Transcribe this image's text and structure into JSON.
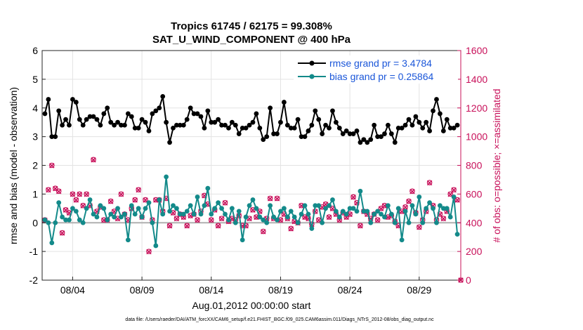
{
  "chart_data": {
    "type": "line",
    "title": "Tropics 61745 / 62175 = 99.308%",
    "subtitle": "SAT_U_WIND_COMPONENT @ 400 hPa",
    "xlabel": "Aug.01,2012 00:00:00 start",
    "ylabel_left": "rmse and bias (model - observation)",
    "ylabel_right": "# of obs: o=possible; ×=assimilated",
    "footnote": "data file: /Users/raeder/DAI/ATM_forcXX/CAM6_setup/f.e21.FHIST_BGC.f09_025.CAM6assim.011/Diags_NTrS_2012-08/obs_diag_output.nc",
    "ylim_left": [
      -2,
      6
    ],
    "yticks_left": [
      "-2",
      "-1",
      "0",
      "1",
      "2",
      "3",
      "4",
      "5",
      "6"
    ],
    "ylim_right": [
      0,
      1600
    ],
    "yticks_right": [
      "0",
      "200",
      "400",
      "600",
      "800",
      "1000",
      "1200",
      "1400",
      "1600"
    ],
    "xlim": [
      0.8,
      31.0
    ],
    "xticks": [
      {
        "value": 3,
        "label": "08/04"
      },
      {
        "value": 8,
        "label": "08/09"
      },
      {
        "value": 13,
        "label": "08/14"
      },
      {
        "value": 18,
        "label": "08/19"
      },
      {
        "value": 23,
        "label": "08/24"
      },
      {
        "value": 28,
        "label": "08/29"
      }
    ],
    "x": [
      1.0,
      1.25,
      1.5,
      1.75,
      2.0,
      2.25,
      2.5,
      2.75,
      3.0,
      3.25,
      3.5,
      3.75,
      4.0,
      4.25,
      4.5,
      4.75,
      5.0,
      5.25,
      5.5,
      5.75,
      6.0,
      6.25,
      6.5,
      6.75,
      7.0,
      7.25,
      7.5,
      7.75,
      8.0,
      8.25,
      8.5,
      8.75,
      9.0,
      9.25,
      9.5,
      9.75,
      10.0,
      10.25,
      10.5,
      10.75,
      11.0,
      11.25,
      11.5,
      11.75,
      12.0,
      12.25,
      12.5,
      12.75,
      13.0,
      13.25,
      13.5,
      13.75,
      14.0,
      14.25,
      14.5,
      14.75,
      15.0,
      15.25,
      15.5,
      15.75,
      16.0,
      16.25,
      16.5,
      16.75,
      17.0,
      17.25,
      17.5,
      17.75,
      18.0,
      18.25,
      18.5,
      18.75,
      19.0,
      19.25,
      19.5,
      19.75,
      20.0,
      20.25,
      20.5,
      20.75,
      21.0,
      21.25,
      21.5,
      21.75,
      22.0,
      22.25,
      22.5,
      22.75,
      23.0,
      23.25,
      23.5,
      23.75,
      24.0,
      24.25,
      24.5,
      24.75,
      25.0,
      25.25,
      25.5,
      25.75,
      26.0,
      26.25,
      26.5,
      26.75,
      27.0,
      27.25,
      27.5,
      27.75,
      28.0,
      28.25,
      28.5,
      28.75,
      29.0,
      29.25,
      29.5,
      29.75,
      30.0,
      30.25,
      30.5,
      30.75
    ],
    "series": [
      {
        "name": "rmse grand pr = 3.4784",
        "color": "#000000",
        "values": [
          3.8,
          4.3,
          3.0,
          3.0,
          3.9,
          3.4,
          3.6,
          3.4,
          4.3,
          4.2,
          3.6,
          3.4,
          3.6,
          3.7,
          3.7,
          3.6,
          3.4,
          3.8,
          4.0,
          3.5,
          3.4,
          3.5,
          3.4,
          3.4,
          3.8,
          3.7,
          3.3,
          3.3,
          3.6,
          3.5,
          3.2,
          3.8,
          3.9,
          4.0,
          4.4,
          3.5,
          2.8,
          3.3,
          3.4,
          3.4,
          3.4,
          3.6,
          4.0,
          3.8,
          3.8,
          3.7,
          3.3,
          3.9,
          3.5,
          3.5,
          3.6,
          3.4,
          3.4,
          3.3,
          3.5,
          3.4,
          3.1,
          3.3,
          3.3,
          3.4,
          3.5,
          3.8,
          3.3,
          2.9,
          3.0,
          4.0,
          3.1,
          3.1,
          3.5,
          4.2,
          3.4,
          3.3,
          3.3,
          3.6,
          3.0,
          3.0,
          3.2,
          3.4,
          3.9,
          3.6,
          3.1,
          3.4,
          3.3,
          3.9,
          3.5,
          3.3,
          3.1,
          3.2,
          3.1,
          3.1,
          3.2,
          2.8,
          2.9,
          2.8,
          2.9,
          3.4,
          3.0,
          3.0,
          3.1,
          3.4,
          3.1,
          2.8,
          3.3,
          3.3,
          3.4,
          3.6,
          3.4,
          3.7,
          3.5,
          3.3,
          3.5,
          3.2,
          3.9,
          4.3,
          3.8,
          3.2,
          3.6,
          3.3,
          3.3,
          3.4
        ]
      },
      {
        "name": "bias grand pr = 0.25864",
        "color": "#138a8a",
        "values": [
          0.1,
          0.0,
          -0.7,
          0.0,
          0.7,
          0.2,
          0.1,
          0.1,
          0.5,
          0.4,
          0.1,
          0.0,
          0.5,
          0.8,
          0.3,
          0.2,
          0.6,
          0.5,
          0.1,
          0.3,
          0.2,
          0.5,
          0.2,
          0.3,
          -0.6,
          0.6,
          0.3,
          0.5,
          0.2,
          0.5,
          0.7,
          0.0,
          -0.8,
          0.8,
          0.3,
          1.6,
          0.4,
          0.6,
          0.5,
          0.3,
          0.3,
          0.4,
          0.6,
          0.3,
          0.9,
          0.3,
          0.6,
          1.2,
          0.3,
          0.5,
          0.7,
          0.5,
          0.3,
          0.1,
          0.5,
          0.0,
          0.4,
          -0.6,
          0.2,
          0.6,
          0.8,
          0.5,
          0.2,
          0.1,
          0.0,
          0.6,
          0.2,
          0.1,
          0.4,
          0.5,
          0.2,
          0.4,
          0.2,
          0.0,
          0.3,
          0.6,
          0.3,
          -0.2,
          0.6,
          0.6,
          0.0,
          0.5,
          0.6,
          0.8,
          0.4,
          0.2,
          0.4,
          0.3,
          0.5,
          0.5,
          0.4,
          1.1,
          0.4,
          0.4,
          0.0,
          0.3,
          0.4,
          0.3,
          0.2,
          0.6,
          0.3,
          0.0,
          0.5,
          -0.6,
          0.4,
          0.0,
          0.6,
          0.3,
          0.9,
          0.0,
          0.5,
          0.7,
          0.5,
          0.0,
          0.6,
          0.5,
          0.5,
          0.2,
          0.9,
          -0.4
        ]
      }
    ],
    "obs_possible_values": [
      420,
      630,
      800,
      640,
      620,
      330,
      490,
      470,
      600,
      560,
      600,
      520,
      600,
      520,
      840,
      480,
      510,
      420,
      420,
      550,
      480,
      430,
      600,
      460,
      420,
      500,
      560,
      630,
      440,
      560,
      200,
      420,
      560,
      560,
      480,
      570,
      380,
      470,
      430,
      460,
      440,
      380,
      450,
      460,
      420,
      480,
      590,
      530,
      420,
      490,
      380,
      430,
      540,
      410,
      430,
      420,
      450,
      380,
      380,
      430,
      490,
      440,
      480,
      340,
      430,
      570,
      430,
      570,
      420,
      460,
      430,
      360,
      410,
      400,
      520,
      440,
      430,
      390,
      480,
      420,
      510,
      530,
      440,
      500,
      460,
      420,
      470,
      440,
      460,
      580,
      540,
      380,
      480,
      460,
      430,
      460,
      420,
      500,
      520,
      440,
      450,
      410,
      380,
      480,
      510,
      550,
      620,
      470,
      370,
      420,
      480,
      680,
      520,
      420,
      460,
      430,
      480,
      600,
      630,
      560
    ],
    "obs_assimilated_values": [
      418,
      628,
      798,
      638,
      618,
      328,
      488,
      468,
      598,
      558,
      598,
      518,
      598,
      518,
      838,
      478,
      508,
      418,
      418,
      548,
      478,
      428,
      598,
      458,
      418,
      498,
      558,
      628,
      438,
      558,
      198,
      418,
      558,
      558,
      478,
      568,
      378,
      468,
      428,
      458,
      438,
      378,
      448,
      458,
      418,
      478,
      588,
      528,
      418,
      488,
      378,
      428,
      538,
      408,
      428,
      418,
      448,
      378,
      378,
      428,
      488,
      438,
      478,
      338,
      428,
      568,
      428,
      568,
      418,
      458,
      428,
      358,
      408,
      398,
      518,
      438,
      428,
      388,
      478,
      418,
      508,
      528,
      438,
      498,
      458,
      418,
      468,
      438,
      458,
      578,
      538,
      378,
      478,
      458,
      428,
      458,
      418,
      498,
      518,
      438,
      448,
      408,
      378,
      478,
      508,
      548,
      618,
      468,
      368,
      418,
      478,
      678,
      518,
      418,
      458,
      428,
      478,
      598,
      628,
      558
    ],
    "last_point_assimilated": 0,
    "grid": true,
    "legend_position": "top-right"
  }
}
